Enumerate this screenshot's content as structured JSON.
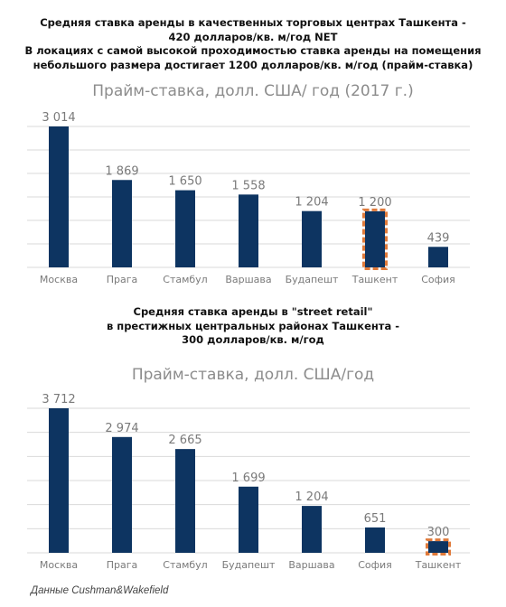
{
  "headings": {
    "top": [
      "Средняя ставка аренды в качественных торговых центрах Ташкента -",
      "420 долларов/кв. м/год  NET",
      "В локациях с самой высокой проходимостью ставка аренды на помещения",
      "небольшого размера достигает 1200 долларов/кв. м/год (прайм-ставка)"
    ],
    "middle": [
      "Средняя ставка аренды в \"street retail\"",
      "в престижных центральных районах Ташкента -",
      "300 долларов/кв. м/год"
    ]
  },
  "footer": "Данные Cushman&Wakefield",
  "colors": {
    "bar": "#0d3461",
    "highlight": "#e07a3a",
    "grid": "#d9d9d9",
    "label": "#7a7a7a"
  },
  "chart_data": [
    {
      "type": "bar",
      "title": "Прайм-ставка, долл. США/ год (2017 г.)",
      "categories": [
        "Москва",
        "Прага",
        "Стамбул",
        "Варшава",
        "Будапешт",
        "Ташкент",
        "София"
      ],
      "values": [
        3014,
        1869,
        1650,
        1558,
        1204,
        1200,
        439
      ],
      "value_labels": [
        "3 014",
        "1 869",
        "1 650",
        "1 558",
        "1 204",
        "1 200",
        "439"
      ],
      "highlight": [
        "Ташкент"
      ],
      "ylim": [
        0,
        3014
      ],
      "grid": true,
      "xlabel": "",
      "ylabel": ""
    },
    {
      "type": "bar",
      "title": "Прайм-ставка, долл. США/год",
      "categories": [
        "Москва",
        "Прага",
        "Стамбул",
        "Будапешт",
        "Варшава",
        "София",
        "Ташкент"
      ],
      "values": [
        3712,
        2974,
        2665,
        1699,
        1204,
        651,
        300
      ],
      "value_labels": [
        "3 712",
        "2 974",
        "2 665",
        "1 699",
        "1 204",
        "651",
        "300"
      ],
      "highlight": [
        "Ташкент"
      ],
      "ylim": [
        0,
        3712
      ],
      "grid": true,
      "xlabel": "",
      "ylabel": ""
    }
  ]
}
